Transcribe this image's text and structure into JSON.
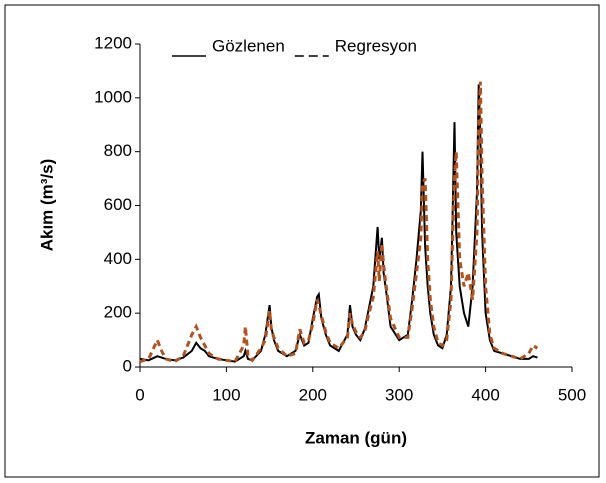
{
  "chart_data": {
    "type": "line",
    "xlabel": "Zaman (gün)",
    "ylabel": "Akım (m³/s)",
    "x": [
      0,
      10,
      20,
      25,
      30,
      40,
      50,
      60,
      65,
      70,
      75,
      80,
      90,
      100,
      110,
      120,
      122,
      125,
      130,
      140,
      145,
      150,
      152,
      155,
      160,
      170,
      180,
      185,
      190,
      195,
      200,
      205,
      207,
      210,
      215,
      220,
      230,
      240,
      243,
      246,
      250,
      255,
      260,
      265,
      270,
      275,
      277,
      280,
      282,
      285,
      290,
      300,
      310,
      315,
      320,
      325,
      327,
      330,
      333,
      336,
      340,
      345,
      350,
      355,
      360,
      362,
      364,
      366,
      370,
      375,
      380,
      385,
      390,
      392,
      394,
      396,
      400,
      405,
      410,
      420,
      430,
      440,
      450,
      455,
      460
    ],
    "series": [
      {
        "name": "Gözlenen",
        "color": "#000000",
        "dash": false,
        "values": [
          30,
          25,
          40,
          35,
          30,
          25,
          35,
          60,
          90,
          70,
          60,
          40,
          30,
          25,
          20,
          40,
          60,
          30,
          25,
          60,
          120,
          230,
          150,
          100,
          60,
          40,
          60,
          120,
          80,
          90,
          180,
          260,
          270,
          180,
          120,
          80,
          60,
          120,
          230,
          150,
          120,
          100,
          140,
          220,
          300,
          520,
          400,
          480,
          350,
          280,
          150,
          100,
          120,
          250,
          400,
          580,
          800,
          450,
          300,
          200,
          120,
          80,
          70,
          120,
          300,
          600,
          910,
          500,
          300,
          200,
          150,
          300,
          650,
          1050,
          850,
          500,
          200,
          100,
          60,
          50,
          40,
          30,
          30,
          40,
          35
        ]
      },
      {
        "name": "Regresyon",
        "color": "#b4521e",
        "dash": true,
        "values": [
          20,
          30,
          100,
          60,
          30,
          20,
          40,
          120,
          150,
          110,
          80,
          50,
          30,
          25,
          20,
          80,
          150,
          40,
          25,
          70,
          100,
          210,
          140,
          110,
          70,
          40,
          50,
          140,
          90,
          100,
          160,
          250,
          230,
          190,
          130,
          90,
          70,
          110,
          200,
          160,
          130,
          110,
          130,
          200,
          260,
          430,
          320,
          460,
          380,
          300,
          180,
          110,
          110,
          220,
          350,
          480,
          680,
          700,
          400,
          250,
          150,
          90,
          80,
          100,
          250,
          500,
          700,
          800,
          400,
          300,
          350,
          250,
          500,
          900,
          1060,
          700,
          300,
          120,
          70,
          50,
          40,
          30,
          50,
          80,
          70
        ]
      }
    ],
    "xlim": [
      0,
      500
    ],
    "xticks": [
      0,
      100,
      200,
      300,
      400,
      500
    ],
    "ylim": [
      0,
      1200
    ],
    "yticks": [
      0,
      200,
      400,
      600,
      800,
      1000,
      1200
    ],
    "grid": false,
    "legend": "top"
  }
}
